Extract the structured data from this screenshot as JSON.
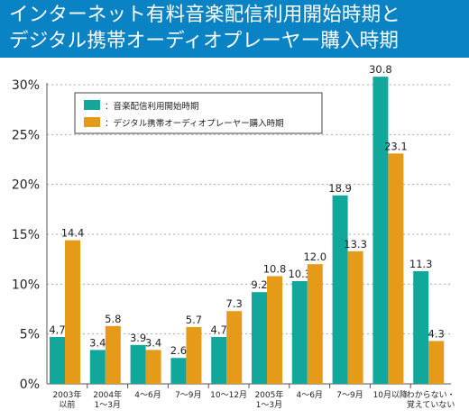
{
  "title_lines": [
    "インターネット有料音楽配信利用開始時期と",
    "デジタル携帯オーディオプレーヤー購入時期"
  ],
  "colors": {
    "banner": "#0a83c5",
    "series_music": "#11a79a",
    "series_player": "#e59a18",
    "axis": "#555555",
    "grid": "#aaaaaa",
    "text": "#222222"
  },
  "chart_data": {
    "type": "bar",
    "title": "インターネット有料音楽配信利用開始時期とデジタル携帯オーディオプレーヤー購入時期",
    "xlabel": "",
    "ylabel": "",
    "ylim": [
      0,
      30
    ],
    "yticks": [
      "0%",
      "5%",
      "10%",
      "15%",
      "20%",
      "25%",
      "30%"
    ],
    "grid": true,
    "legend_position": "top-left",
    "categories": [
      "2003年\n以前",
      "2004年\n1～3月",
      "4～6月",
      "7～9月",
      "10～12月",
      "2005年\n1～3月",
      "4～6月",
      "7～9月",
      "10月以降",
      "わからない・\n覚えていない"
    ],
    "series": [
      {
        "name": "：音楽配信利用開始時期",
        "color": "#11a79a",
        "values": [
          4.7,
          3.4,
          3.9,
          2.6,
          4.7,
          9.2,
          10.3,
          18.9,
          30.8,
          11.3
        ]
      },
      {
        "name": "：デジタル携帯オーディオプレーヤー購入時期",
        "color": "#e59a18",
        "values": [
          14.4,
          5.8,
          3.4,
          5.7,
          7.3,
          10.8,
          12.0,
          13.3,
          23.1,
          4.3
        ]
      }
    ],
    "data_labels": [
      [
        "4.7",
        "3.4",
        "3.9",
        "2.6",
        "4.7",
        "9.2",
        "10.3",
        "18.9",
        "30.8",
        "11.3"
      ],
      [
        "14.4",
        "5.8",
        "3.4",
        "5.7",
        "7.3",
        "10.8",
        "12.0",
        "13.3",
        "23.1",
        "4.3"
      ]
    ]
  }
}
